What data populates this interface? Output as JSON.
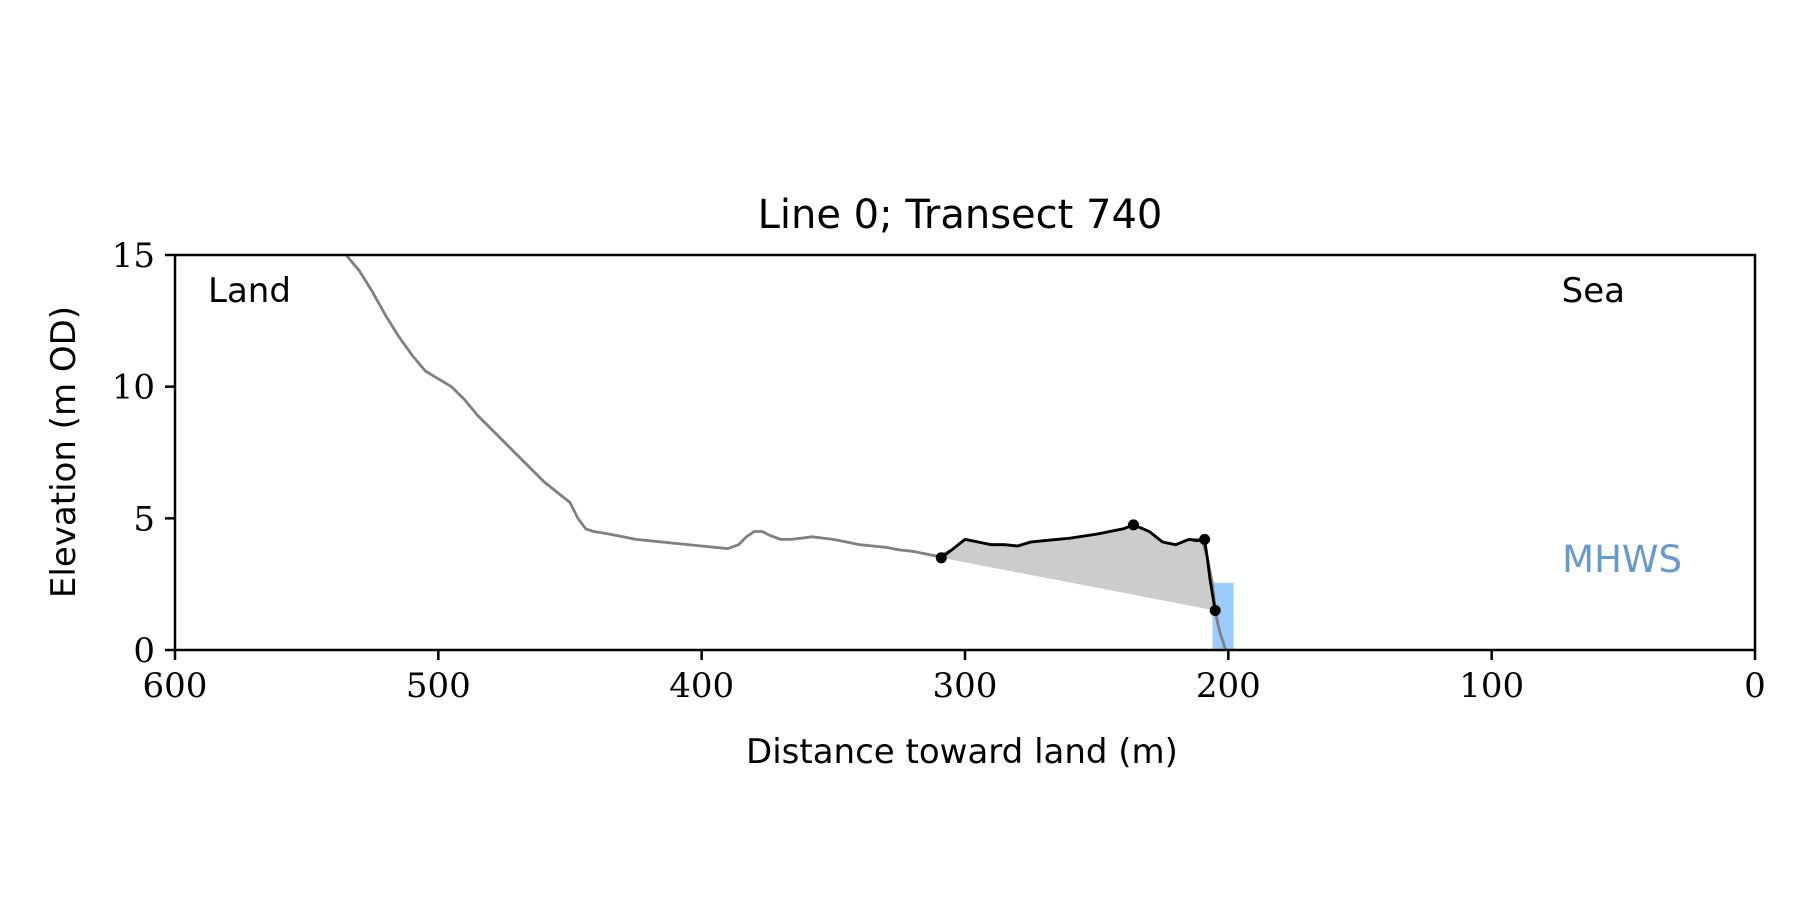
{
  "chart_data": {
    "type": "line",
    "title": "Line 0; Transect 740",
    "xlabel": "Distance toward land (m)",
    "ylabel": "Elevation (m OD)",
    "xlim": [
      600,
      0
    ],
    "ylim": [
      0,
      15
    ],
    "xticks": [
      600,
      500,
      400,
      300,
      200,
      100,
      0
    ],
    "yticks": [
      0,
      5,
      10,
      15
    ],
    "grid": false,
    "annotations": {
      "land_label": "Land",
      "sea_label": "Sea",
      "mhws_label": "MHWS"
    },
    "colors": {
      "profile": "#808080",
      "feature": "#000000",
      "fill": "#cccccc",
      "mhws_bar": "#99ccff",
      "mhws_text": "#6699cc"
    },
    "profile": {
      "x": [
        535,
        530,
        525,
        520,
        515,
        510,
        505,
        500,
        495,
        490,
        485,
        480,
        475,
        470,
        465,
        460,
        455,
        450,
        447,
        444,
        441,
        438,
        435,
        430,
        425,
        420,
        410,
        400,
        395,
        390,
        386,
        383,
        380,
        377,
        374,
        370,
        366,
        362,
        358,
        354,
        350,
        345,
        340,
        335,
        330,
        325,
        320,
        315,
        310,
        305,
        300,
        295,
        290,
        285,
        280,
        275,
        270,
        260,
        250,
        240,
        236,
        230,
        225,
        220,
        215,
        210,
        208,
        206,
        205,
        204,
        203,
        202,
        201
      ],
      "y": [
        15.0,
        14.4,
        13.6,
        12.7,
        11.9,
        11.2,
        10.6,
        10.3,
        10.0,
        9.5,
        8.9,
        8.4,
        7.9,
        7.4,
        6.9,
        6.4,
        6.0,
        5.6,
        5.0,
        4.6,
        4.5,
        4.45,
        4.4,
        4.3,
        4.2,
        4.15,
        4.05,
        3.95,
        3.9,
        3.85,
        4.0,
        4.3,
        4.5,
        4.5,
        4.35,
        4.2,
        4.2,
        4.25,
        4.3,
        4.25,
        4.2,
        4.1,
        4.0,
        3.95,
        3.9,
        3.8,
        3.75,
        3.65,
        3.55,
        3.8,
        4.2,
        4.1,
        4.0,
        4.0,
        3.95,
        4.1,
        4.15,
        4.25,
        4.4,
        4.6,
        4.75,
        4.5,
        4.1,
        4.0,
        4.2,
        4.2,
        3.5,
        2.5,
        1.5,
        1.0,
        0.6,
        0.3,
        0.0
      ]
    },
    "feature": {
      "x": [
        309,
        305,
        300,
        295,
        290,
        285,
        280,
        275,
        270,
        260,
        250,
        240,
        236,
        230,
        225,
        220,
        215,
        212,
        209,
        208,
        207,
        206,
        205
      ],
      "y": [
        3.5,
        3.8,
        4.2,
        4.1,
        4.0,
        4.0,
        3.95,
        4.1,
        4.15,
        4.25,
        4.4,
        4.6,
        4.75,
        4.5,
        4.1,
        4.0,
        4.2,
        4.15,
        4.2,
        3.5,
        2.7,
        2.1,
        1.5
      ]
    },
    "shaded_polygon": {
      "x": [
        309,
        305,
        300,
        295,
        290,
        285,
        280,
        275,
        270,
        260,
        250,
        240,
        236,
        230,
        225,
        220,
        215,
        212,
        209,
        208,
        207,
        206,
        205,
        204,
        203,
        202,
        201,
        205
      ],
      "y": [
        3.5,
        3.8,
        4.2,
        4.1,
        4.0,
        4.0,
        3.95,
        4.1,
        4.15,
        4.25,
        4.4,
        4.6,
        4.75,
        4.5,
        4.1,
        4.0,
        4.2,
        4.15,
        4.2,
        3.5,
        2.7,
        2.1,
        1.5,
        1.0,
        0.6,
        0.3,
        0.0,
        1.5
      ]
    },
    "markers": [
      {
        "x": 309,
        "y": 3.5
      },
      {
        "x": 236,
        "y": 4.75
      },
      {
        "x": 209,
        "y": 4.2
      },
      {
        "x": 205,
        "y": 1.5
      }
    ],
    "mhws_bar": {
      "x0": 206,
      "x1": 198,
      "y0": 0,
      "y1": 2.55
    }
  }
}
